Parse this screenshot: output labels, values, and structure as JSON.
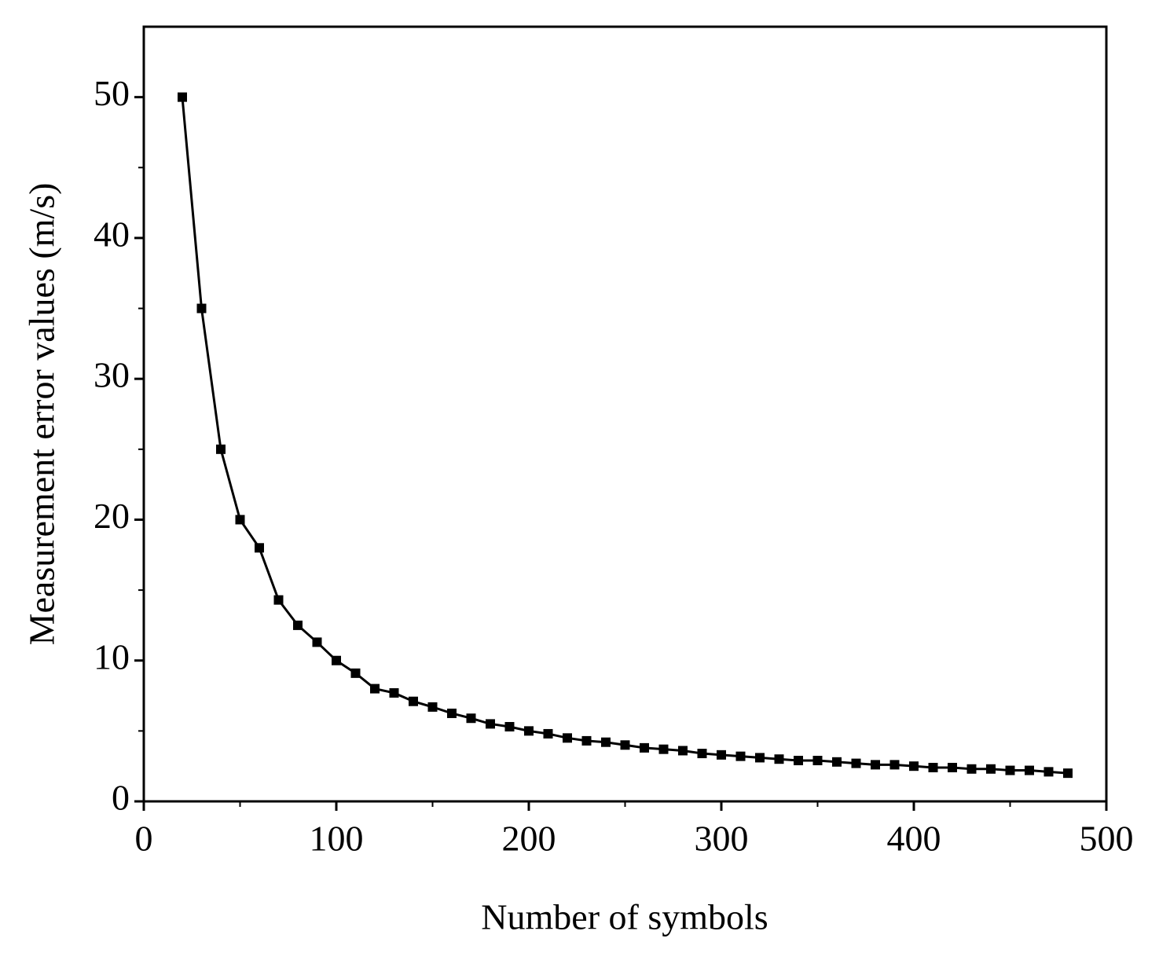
{
  "chart_data": {
    "type": "line",
    "x_label": "Number of symbols",
    "y_label": "Measurement error values (m/s)",
    "x": [
      20,
      30,
      40,
      50,
      60,
      70,
      80,
      90,
      100,
      110,
      120,
      130,
      140,
      150,
      160,
      170,
      180,
      190,
      200,
      210,
      220,
      230,
      240,
      250,
      260,
      270,
      280,
      290,
      300,
      310,
      320,
      330,
      340,
      350,
      360,
      370,
      380,
      390,
      400,
      410,
      420,
      430,
      440,
      450,
      460,
      470,
      480
    ],
    "series": [
      {
        "color": "#000000",
        "values": [
          50,
          35,
          25,
          20,
          18,
          14.3,
          12.5,
          11.3,
          10,
          9.1,
          8,
          7.7,
          7.1,
          6.7,
          6.25,
          5.9,
          5.5,
          5.3,
          5,
          4.8,
          4.5,
          4.3,
          4.2,
          4,
          3.8,
          3.7,
          3.6,
          3.4,
          3.3,
          3.2,
          3.1,
          3.0,
          2.9,
          2.9,
          2.8,
          2.7,
          2.6,
          2.6,
          2.5,
          2.4,
          2.4,
          2.3,
          2.3,
          2.2,
          2.2,
          2.1,
          2.0
        ]
      }
    ],
    "xlim": [
      0,
      500
    ],
    "xticks": [
      0,
      100,
      200,
      300,
      400,
      500
    ],
    "ylim": [
      0,
      55
    ],
    "yticks": [
      0,
      10,
      20,
      30,
      40,
      50
    ],
    "minor_ticks": true,
    "marker": "square"
  }
}
